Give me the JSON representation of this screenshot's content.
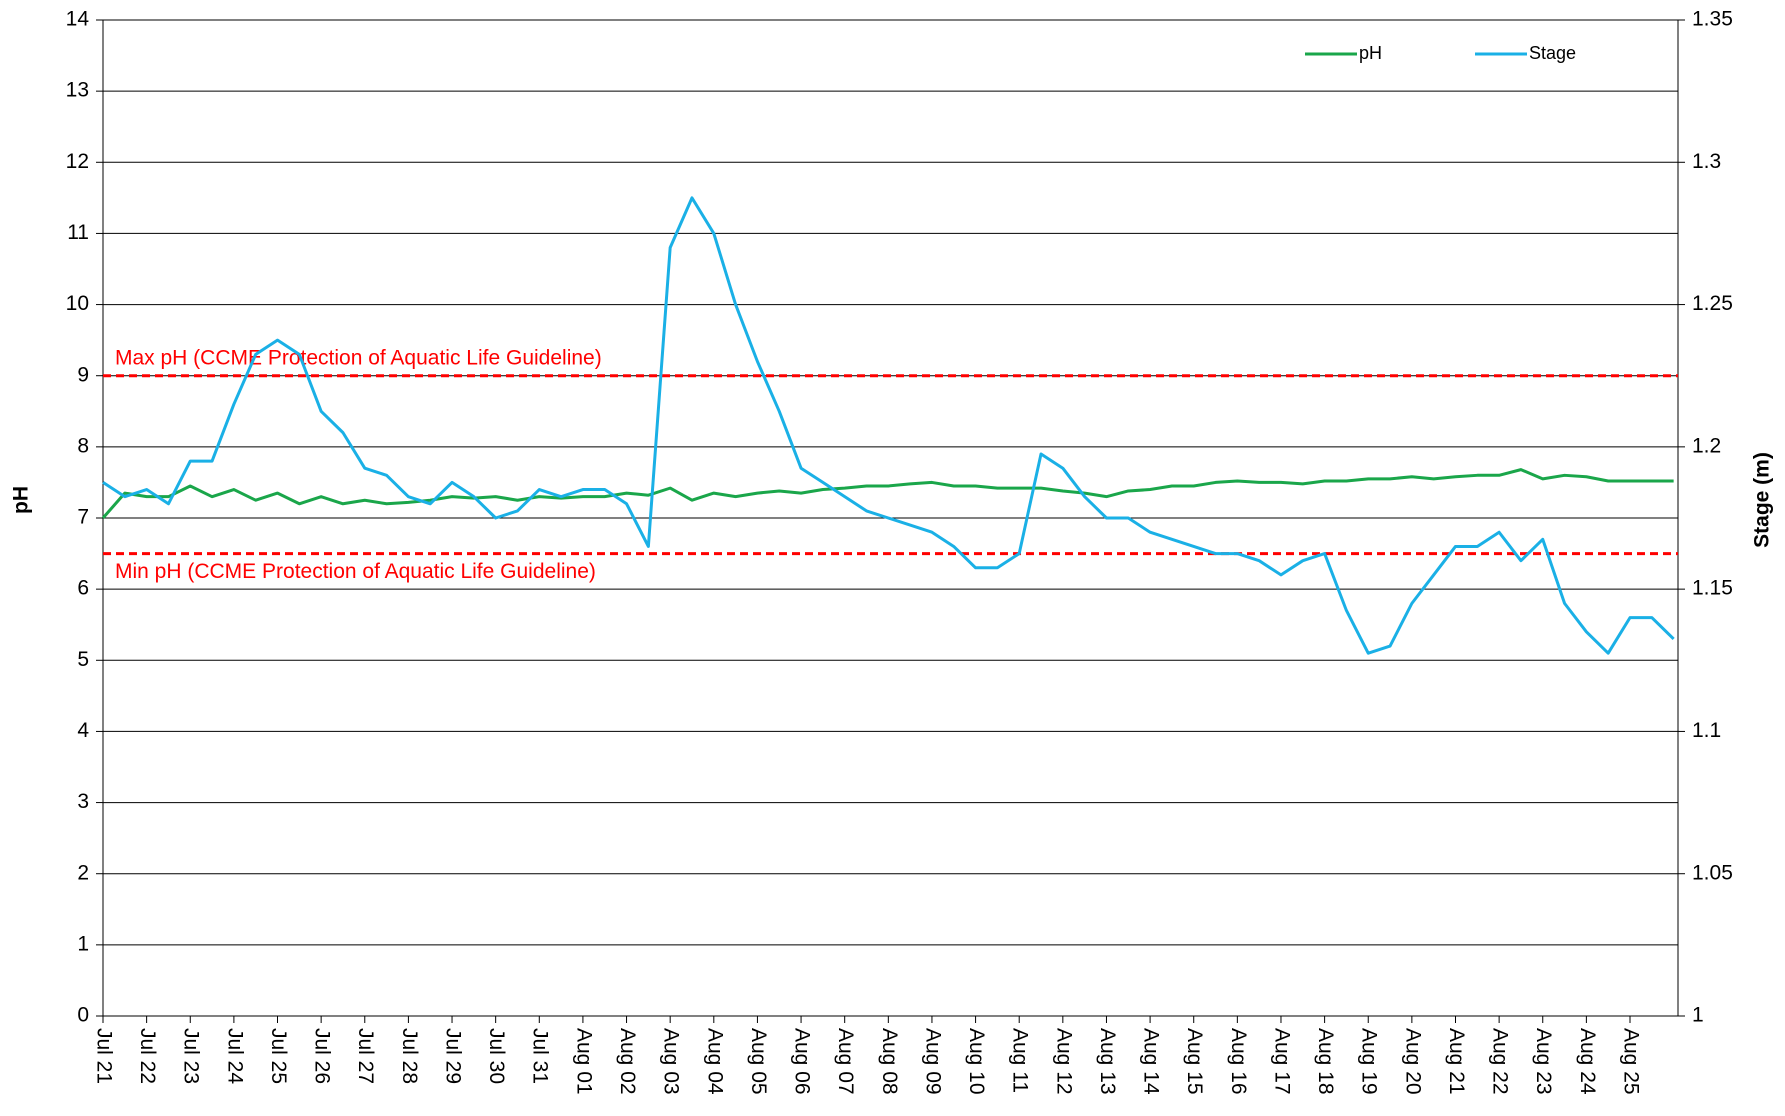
{
  "chart_data": {
    "type": "line",
    "y_label": "pH",
    "y2_label": "Stage (m)",
    "x": [
      0,
      0.5,
      1,
      1.5,
      2,
      2.5,
      3,
      3.5,
      4,
      4.5,
      5,
      5.5,
      6,
      6.5,
      7,
      7.5,
      8,
      8.5,
      9,
      9.5,
      10,
      10.5,
      11,
      11.5,
      12,
      12.5,
      13,
      13.5,
      14,
      14.5,
      15,
      15.5,
      16,
      16.5,
      17,
      17.5,
      18,
      18.5,
      19,
      19.5,
      20,
      20.5,
      21,
      21.5,
      22,
      22.5,
      23,
      23.5,
      24,
      24.5,
      25,
      25.5,
      26,
      26.5,
      27,
      27.5,
      28,
      28.5,
      29,
      29.5,
      30,
      30.5,
      31,
      31.5,
      32,
      32.5,
      33,
      33.5,
      34,
      34.5,
      35,
      35.5,
      36
    ],
    "series": [
      {
        "name": "pH",
        "color": "#1aa64a",
        "values": [
          7.0,
          7.35,
          7.3,
          7.3,
          7.45,
          7.3,
          7.4,
          7.25,
          7.35,
          7.2,
          7.3,
          7.2,
          7.25,
          7.2,
          7.22,
          7.25,
          7.3,
          7.28,
          7.3,
          7.25,
          7.3,
          7.28,
          7.3,
          7.3,
          7.35,
          7.32,
          7.42,
          7.25,
          7.35,
          7.3,
          7.35,
          7.38,
          7.35,
          7.4,
          7.42,
          7.45,
          7.45,
          7.48,
          7.5,
          7.45,
          7.45,
          7.42,
          7.42,
          7.42,
          7.38,
          7.35,
          7.3,
          7.38,
          7.4,
          7.45,
          7.45,
          7.5,
          7.52,
          7.5,
          7.5,
          7.48,
          7.52,
          7.52,
          7.55,
          7.55,
          7.58,
          7.55,
          7.58,
          7.6,
          7.6,
          7.68,
          7.55,
          7.6,
          7.58,
          7.52,
          7.52,
          7.52,
          7.52
        ]
      },
      {
        "name": "Stage",
        "color": "#1ab0e6",
        "axis": "y2",
        "values": [
          1.1875,
          1.1825,
          1.185,
          1.18,
          1.195,
          1.195,
          1.215,
          1.2325,
          1.2375,
          1.2325,
          1.2125,
          1.205,
          1.1925,
          1.19,
          1.1825,
          1.18,
          1.1875,
          1.1825,
          1.175,
          1.1775,
          1.185,
          1.1825,
          1.185,
          1.185,
          1.18,
          1.165,
          1.27,
          1.2875,
          1.275,
          1.25,
          1.23,
          1.2125,
          1.1925,
          1.1875,
          1.1825,
          1.1775,
          1.175,
          1.1725,
          1.17,
          1.165,
          1.1575,
          1.1575,
          1.1625,
          1.1975,
          1.1925,
          1.1825,
          1.175,
          1.175,
          1.17,
          1.1675,
          1.165,
          1.1625,
          1.1625,
          1.16,
          1.155,
          1.16,
          1.1625,
          1.1425,
          1.1275,
          1.13,
          1.145,
          1.155,
          1.165,
          1.165,
          1.17,
          1.16,
          1.1675,
          1.145,
          1.135,
          1.1275,
          1.14,
          1.14,
          1.1325
        ]
      }
    ],
    "reference_lines": [
      {
        "value": 9,
        "label": "Max pH (CCME Protection of Aquatic Life Guideline)",
        "color": "#ff0000"
      },
      {
        "value": 6.5,
        "label": "Min pH (CCME Protection of Aquatic Life Guideline)",
        "color": "#ff0000"
      }
    ],
    "xlim": [
      0,
      36.1
    ],
    "xticks": [
      {
        "value": 0,
        "label": "Jul 21"
      },
      {
        "value": 1,
        "label": "Jul 22"
      },
      {
        "value": 2,
        "label": "Jul 23"
      },
      {
        "value": 3,
        "label": "Jul 24"
      },
      {
        "value": 4,
        "label": "Jul 25"
      },
      {
        "value": 5,
        "label": "Jul 26"
      },
      {
        "value": 6,
        "label": "Jul 27"
      },
      {
        "value": 7,
        "label": "Jul 28"
      },
      {
        "value": 8,
        "label": "Jul 29"
      },
      {
        "value": 9,
        "label": "Jul 30"
      },
      {
        "value": 10,
        "label": "Jul 31"
      },
      {
        "value": 11,
        "label": "Aug 01"
      },
      {
        "value": 12,
        "label": "Aug 02"
      },
      {
        "value": 13,
        "label": "Aug 03"
      },
      {
        "value": 14,
        "label": "Aug 04"
      },
      {
        "value": 15,
        "label": "Aug 05"
      },
      {
        "value": 16,
        "label": "Aug 06"
      },
      {
        "value": 17,
        "label": "Aug 07"
      },
      {
        "value": 18,
        "label": "Aug 08"
      },
      {
        "value": 19,
        "label": "Aug 09"
      },
      {
        "value": 20,
        "label": "Aug 10"
      },
      {
        "value": 21,
        "label": "Aug 11"
      },
      {
        "value": 22,
        "label": "Aug 12"
      },
      {
        "value": 23,
        "label": "Aug 13"
      },
      {
        "value": 24,
        "label": "Aug 14"
      },
      {
        "value": 25,
        "label": "Aug 15"
      },
      {
        "value": 26,
        "label": "Aug 16"
      },
      {
        "value": 27,
        "label": "Aug 17"
      },
      {
        "value": 28,
        "label": "Aug 18"
      },
      {
        "value": 29,
        "label": "Aug 19"
      },
      {
        "value": 30,
        "label": "Aug 20"
      },
      {
        "value": 31,
        "label": "Aug 21"
      },
      {
        "value": 32,
        "label": "Aug 22"
      },
      {
        "value": 33,
        "label": "Aug 23"
      },
      {
        "value": 34,
        "label": "Aug 24"
      },
      {
        "value": 35,
        "label": "Aug 25"
      }
    ],
    "ylim": [
      0,
      14
    ],
    "yticks": [
      0,
      1,
      2,
      3,
      4,
      5,
      6,
      7,
      8,
      9,
      10,
      11,
      12,
      13,
      14
    ],
    "y2lim": [
      1,
      1.35
    ],
    "y2ticks": [
      1,
      1.05,
      1.1,
      1.15,
      1.2,
      1.25,
      1.3,
      1.35
    ],
    "grid": true,
    "legend": "upper right"
  }
}
